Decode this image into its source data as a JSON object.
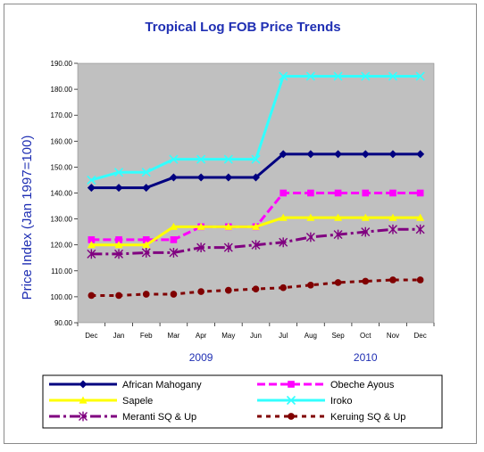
{
  "chart_data": {
    "type": "line",
    "title": "Tropical Log FOB Price Trends",
    "ylabel": "Price Index (Jan 1997=100)",
    "xlabel": "",
    "ylim": [
      90,
      190
    ],
    "yticks": [
      "90.00",
      "100.00",
      "110.00",
      "120.00",
      "130.00",
      "140.00",
      "150.00",
      "160.00",
      "170.00",
      "180.00",
      "190.00"
    ],
    "categories": [
      "Dec",
      "Jan",
      "Feb",
      "Mar",
      "Apr",
      "May",
      "Jun",
      "Jul",
      "Aug",
      "Sep",
      "Oct",
      "Nov",
      "Dec"
    ],
    "year_labels": [
      {
        "label": "2009",
        "center_index": 4
      },
      {
        "label": "2010",
        "center_index": 10
      }
    ],
    "grid": false,
    "plot_background": "#c0c0c0",
    "legend_position": "bottom",
    "series": [
      {
        "name": "African Mahogany",
        "color": "#000080",
        "marker": "diamond",
        "dash": "solid",
        "values": [
          142,
          142,
          142,
          146,
          146,
          146,
          146,
          155,
          155,
          155,
          155,
          155,
          155
        ]
      },
      {
        "name": "Obeche Ayous",
        "color": "#ff00ff",
        "marker": "square",
        "dash": "dashed",
        "values": [
          122,
          122,
          122,
          122,
          127,
          127,
          127,
          140,
          140,
          140,
          140,
          140,
          140
        ]
      },
      {
        "name": "Sapele",
        "color": "#ffff00",
        "marker": "triangle",
        "dash": "solid",
        "values": [
          120,
          120,
          120,
          127,
          127,
          127,
          127,
          130.5,
          130.5,
          130.5,
          130.5,
          130.5,
          130.5
        ]
      },
      {
        "name": "Iroko",
        "color": "#33ffff",
        "marker": "x",
        "dash": "solid",
        "values": [
          145,
          148,
          148,
          153,
          153,
          153,
          153,
          185,
          185,
          185,
          185,
          185,
          185
        ]
      },
      {
        "name": "Meranti SQ & Up",
        "color": "#800080",
        "marker": "star",
        "dash": "dashdot",
        "values": [
          116.5,
          116.5,
          117,
          117,
          119,
          119,
          120,
          121,
          123,
          124,
          125,
          126,
          126
        ]
      },
      {
        "name": "Keruing SQ & Up",
        "color": "#800000",
        "marker": "circle",
        "dash": "dotted",
        "values": [
          100.5,
          100.5,
          101,
          101,
          102,
          102.5,
          103,
          103.5,
          104.5,
          105.5,
          106,
          106.5,
          106.5
        ]
      }
    ]
  }
}
